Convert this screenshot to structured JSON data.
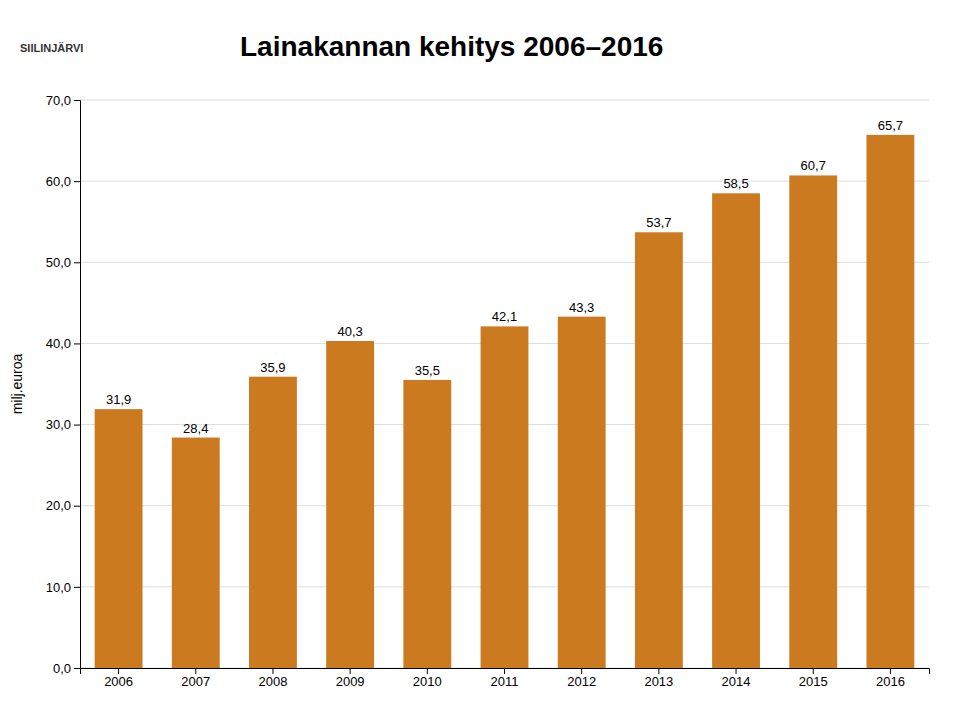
{
  "chart_data": {
    "type": "bar",
    "title": "Lainakannan kehitys 2006–2016",
    "annotations": [
      "SIILINJÄRVI"
    ],
    "y_label": "milj.euroa",
    "categories": [
      "2006",
      "2007",
      "2008",
      "2009",
      "2010",
      "2011",
      "2012",
      "2013",
      "2014",
      "2015",
      "2016"
    ],
    "values": [
      31.9,
      28.4,
      35.9,
      40.3,
      35.5,
      42.1,
      43.3,
      53.7,
      58.5,
      60.7,
      65.7
    ],
    "value_labels": [
      "31,9",
      "28,4",
      "35,9",
      "40,3",
      "35,5",
      "42,1",
      "43,3",
      "53,7",
      "58,5",
      "60,7",
      "65,7"
    ],
    "color": "#CC7A1F",
    "ylim": [
      0,
      70
    ],
    "yticks": [
      {
        "value": 0,
        "label": "0,0"
      },
      {
        "value": 10,
        "label": "10,0"
      },
      {
        "value": 20,
        "label": "20,0"
      },
      {
        "value": 30,
        "label": "30,0"
      },
      {
        "value": 40,
        "label": "40,0"
      },
      {
        "value": 50,
        "label": "50,0"
      },
      {
        "value": 60,
        "label": "60,0"
      },
      {
        "value": 70,
        "label": "70,0"
      }
    ],
    "grid": true,
    "data_labels": true
  }
}
